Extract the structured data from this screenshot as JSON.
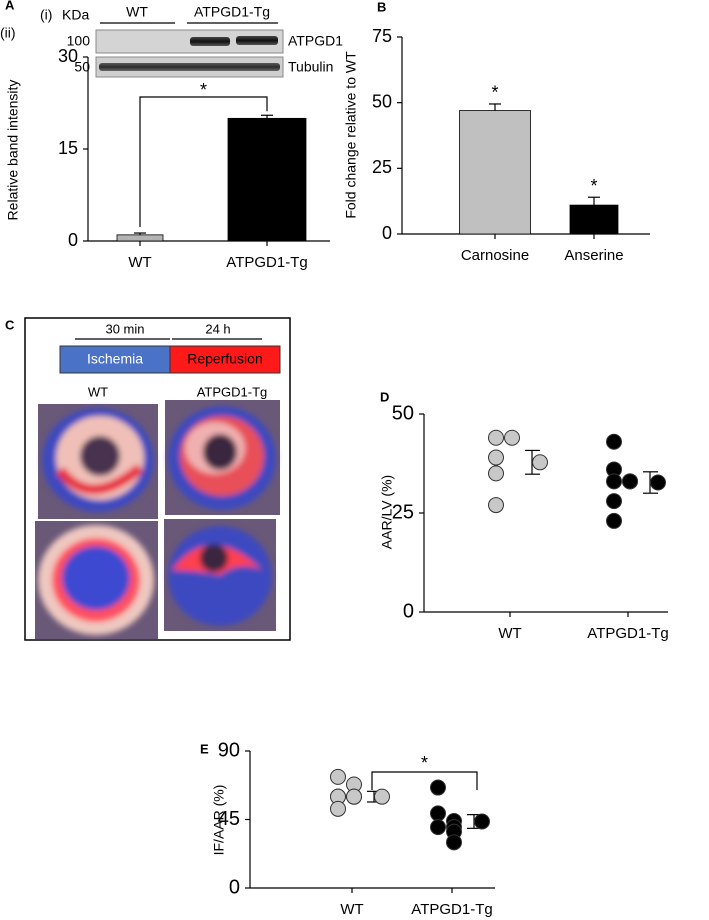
{
  "chart_data": [
    {
      "panel": "A",
      "type": "bar",
      "ylabel": "Relative band  intensity",
      "categories": [
        "WT",
        "ATPGD1-Tg"
      ],
      "values": [
        1,
        20
      ],
      "errors": [
        0.3,
        0.5
      ],
      "colors": [
        "#b3b3b3",
        "#000000"
      ],
      "ylim": [
        0,
        30
      ],
      "yticks": [
        0,
        15,
        30
      ],
      "annotation": "*"
    },
    {
      "panel": "B",
      "type": "bar",
      "ylabel": "Fold change relative to WT",
      "categories": [
        "Carnosine",
        "Anserine"
      ],
      "values": [
        47,
        11
      ],
      "errors": [
        2.5,
        3
      ],
      "colors": [
        "#c0c0c0",
        "#000000"
      ],
      "ylim": [
        0,
        75
      ],
      "yticks": [
        0,
        25,
        50,
        75
      ],
      "annotations": [
        "*",
        "*"
      ]
    },
    {
      "panel": "D",
      "type": "dotplot",
      "ylabel": "AAR/LV (%)",
      "categories": [
        "WT",
        "ATPGD1-Tg"
      ],
      "groups": [
        {
          "color": "#c8c8c8",
          "values": [
            44,
            44,
            39,
            35,
            27
          ],
          "mean": 37.8,
          "error": 3
        },
        {
          "color": "#000000",
          "values": [
            43,
            36,
            33,
            33,
            33,
            28,
            23
          ],
          "mean": 32.7,
          "error": 2.7
        }
      ],
      "ylim": [
        0,
        50
      ],
      "yticks": [
        0,
        25,
        50
      ]
    },
    {
      "panel": "E",
      "type": "dotplot",
      "ylabel": "IF/AAR (%)",
      "categories": [
        "WT",
        "ATPGD1-Tg"
      ],
      "groups": [
        {
          "color": "#c8c8c8",
          "values": [
            73,
            68,
            60,
            60,
            60,
            60,
            52
          ],
          "mean": 60,
          "error": 3.5
        },
        {
          "color": "#000000",
          "values": [
            66,
            49,
            44,
            40,
            40,
            37,
            30
          ],
          "mean": 43.7,
          "error": 4.5
        }
      ],
      "ylim": [
        0,
        90
      ],
      "yticks": [
        0,
        45,
        90
      ],
      "annotation": "*"
    }
  ],
  "blot": {
    "label_i": "(i)",
    "label_ii": "(ii)",
    "unit": "KDa",
    "group_left": "WT",
    "group_right": "ATPGD1-Tg",
    "rows": [
      {
        "size": "100",
        "protein": "ATPGD1"
      },
      {
        "size": "50",
        "protein": "Tubulin"
      }
    ]
  },
  "protocol": {
    "panel": "C",
    "time_left": "30 min",
    "time_right": "24 h",
    "phase_left": "Ischemia",
    "phase_right": "Reperfusion",
    "image_left": "WT",
    "image_right": "ATPGD1-Tg"
  }
}
